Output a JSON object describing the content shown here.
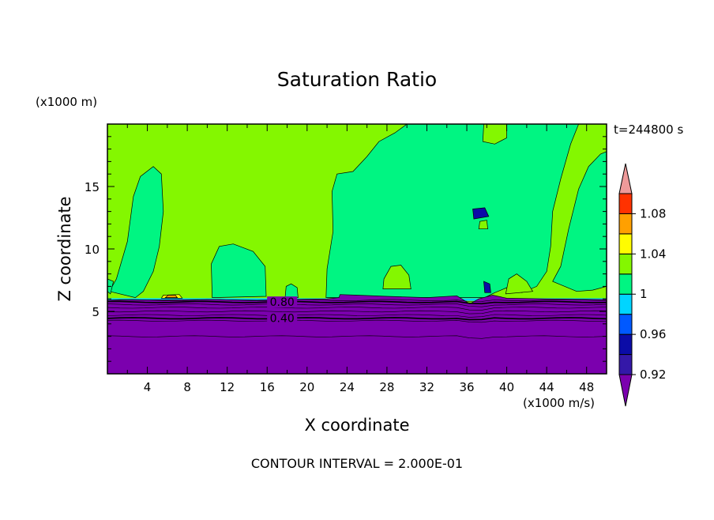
{
  "chart_data": {
    "type": "heatmap",
    "title": "Saturation Ratio",
    "xlabel": "X coordinate",
    "ylabel": "Z coordinate",
    "x_unit": "(x1000 m/s)",
    "y_unit": "(x1000 m)",
    "time_label": "t=244800 s",
    "footer": "CONTOUR INTERVAL = 2.000E-01",
    "xlim": [
      0,
      50
    ],
    "ylim": [
      0,
      20
    ],
    "x_ticks": [
      4,
      8,
      12,
      16,
      20,
      24,
      28,
      32,
      36,
      40,
      44,
      48
    ],
    "y_ticks": [
      5,
      10,
      15
    ],
    "colorbar": {
      "levels": [
        0.92,
        0.94,
        0.96,
        0.98,
        1.0,
        1.02,
        1.04,
        1.06,
        1.08,
        1.1
      ],
      "tick_labels": [
        "0.92",
        "0.96",
        "1",
        "1.04",
        "1.08"
      ],
      "tick_values": [
        0.92,
        0.96,
        1.0,
        1.04,
        1.08
      ],
      "colors": [
        "#7b00ae",
        "#3418a8",
        "#0b0ca7",
        "#0059ff",
        "#00d5ff",
        "#00f582",
        "#84f700",
        "#fffc00",
        "#ffa000",
        "#ff3200",
        "#ee9a9a"
      ]
    },
    "contour_labels": [
      {
        "text": "0.80",
        "x": 17.5,
        "y": 5.75
      },
      {
        "text": "0.40",
        "x": 17.5,
        "y": 4.45
      }
    ],
    "regions": [
      {
        "range": "< 0.92",
        "description_value": 0.9,
        "z_top": 5.9
      },
      {
        "range": "0.98-1.00",
        "description_value": 0.99
      },
      {
        "range": "1.00-1.02",
        "description_value": 1.01
      }
    ]
  }
}
